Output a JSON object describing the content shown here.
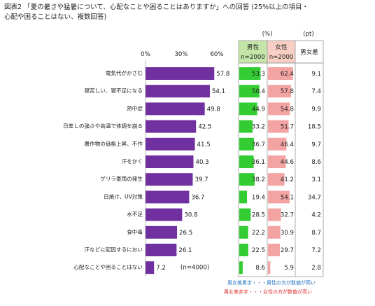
{
  "title": {
    "line1": "図表2 「夏の暑さや猛暑について、心配なことや困ることはありますか」への回答 (25%以上の項目・",
    "line2": "心配や困ることはない、複数回答)"
  },
  "chart_data": {
    "type": "bar",
    "orientation": "horizontal",
    "categories": [
      "電気代がかさむ",
      "寝苦しい、寝不足になる",
      "熱中症",
      "日差しの強さや高温で体調を崩る",
      "農作物の価格上昇、不作",
      "汗をかく",
      "ゲリラ豪雨の発生",
      "日焼け、UV対策",
      "水不足",
      "食中毒",
      "汗などに起因するにおい",
      "心配なことや困ることはない"
    ],
    "series": [
      {
        "name": "",
        "values": [
          57.8,
          54.1,
          49.8,
          42.5,
          41.5,
          40.3,
          39.7,
          36.7,
          30.8,
          26.5,
          26.1,
          7.2
        ]
      }
    ],
    "value_labels": [
      "57.8",
      "54.1",
      "49.8",
      "42.5",
      "41.5",
      "40.3",
      "39.7",
      "36.7",
      "30.8",
      "26.5",
      "26.1",
      "7.2"
    ],
    "xlim": [
      0,
      60
    ],
    "x_ticks": [
      "0%",
      "30%",
      "60%"
    ],
    "n_note": "(n=4000)",
    "bar_color": "#7030a0"
  },
  "table": {
    "unit_pct": "(%)",
    "unit_pt": "(pt)",
    "male_header": "男性",
    "male_n": "n=2000",
    "female_header": "女性",
    "female_n": "n=2000",
    "diff_header": "男女差",
    "male": [
      53.3,
      50.4,
      44.9,
      33.2,
      36.7,
      36.1,
      38.2,
      19.4,
      28.5,
      22.2,
      22.5,
      8.6
    ],
    "male_labels": [
      "53.3",
      "50.4",
      "44.9",
      "33.2",
      "36.7",
      "36.1",
      "38.2",
      "19.4",
      "28.5",
      "22.2",
      "22.5",
      "8.6"
    ],
    "female": [
      62.4,
      57.8,
      54.8,
      51.7,
      46.4,
      44.6,
      41.2,
      54.1,
      32.7,
      30.9,
      29.7,
      5.9
    ],
    "female_labels": [
      "62.4",
      "57.8",
      "54.8",
      "51.7",
      "46.4",
      "44.6",
      "41.2",
      "54.1",
      "32.7",
      "30.9",
      "29.7",
      "5.9"
    ],
    "diff_labels": [
      "9.1",
      "7.4",
      "9.9",
      "18.5",
      "9.7",
      "8.6",
      "3.1",
      "34.7",
      "4.2",
      "8.7",
      "7.2",
      "2.8"
    ],
    "diff_colors": [
      "#e03030",
      "#e03030",
      "#e03030",
      "#e03030",
      "#e03030",
      "#e03030",
      "#e03030",
      "#e03030",
      "#e09030",
      "#e03030",
      "#e03030",
      "#2070c0"
    ],
    "male_bar_color": "#33cc33",
    "female_bar_color": "#f4a3a3",
    "male_header_bg": "#c4e6a8",
    "female_header_bg": "#f8cfc5"
  },
  "legend": {
    "male_text": "男女差男字・・・男性の方が数値が高い",
    "female_text": "男女差赤字・・・女性の方が数値が高い",
    "male_color": "#2070c0",
    "female_color": "#e03030"
  }
}
